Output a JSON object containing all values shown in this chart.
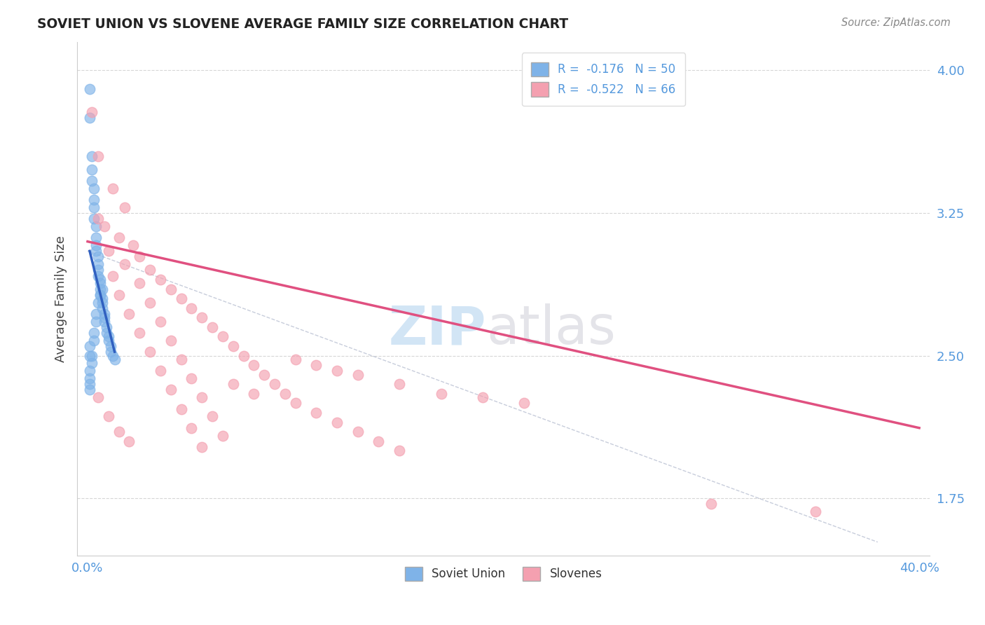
{
  "title": "SOVIET UNION VS SLOVENE AVERAGE FAMILY SIZE CORRELATION CHART",
  "source_text": "Source: ZipAtlas.com",
  "ylabel": "Average Family Size",
  "xlim": [
    -0.005,
    0.405
  ],
  "ylim": [
    1.45,
    4.15
  ],
  "yticks": [
    1.75,
    2.5,
    3.25,
    4.0
  ],
  "xticks": [
    0.0,
    0.4
  ],
  "xtick_labels": [
    "0.0%",
    "40.0%"
  ],
  "ytick_labels": [
    "1.75",
    "2.50",
    "3.25",
    "4.00"
  ],
  "soviet_color": "#7fb3e8",
  "slovene_color": "#f4a0b0",
  "soviet_R": -0.176,
  "soviet_N": 50,
  "slovene_R": -0.522,
  "slovene_N": 66,
  "soviet_line_color": "#3060c0",
  "slovene_line_color": "#e05080",
  "soviet_points": [
    [
      0.001,
      3.9
    ],
    [
      0.001,
      3.75
    ],
    [
      0.002,
      3.55
    ],
    [
      0.002,
      3.48
    ],
    [
      0.002,
      3.42
    ],
    [
      0.003,
      3.38
    ],
    [
      0.003,
      3.32
    ],
    [
      0.003,
      3.28
    ],
    [
      0.003,
      3.22
    ],
    [
      0.004,
      3.18
    ],
    [
      0.004,
      3.12
    ],
    [
      0.004,
      3.08
    ],
    [
      0.004,
      3.05
    ],
    [
      0.005,
      3.02
    ],
    [
      0.005,
      2.98
    ],
    [
      0.005,
      2.95
    ],
    [
      0.005,
      2.92
    ],
    [
      0.006,
      2.9
    ],
    [
      0.006,
      2.88
    ],
    [
      0.006,
      2.85
    ],
    [
      0.006,
      2.82
    ],
    [
      0.007,
      2.8
    ],
    [
      0.007,
      2.78
    ],
    [
      0.007,
      2.75
    ],
    [
      0.008,
      2.72
    ],
    [
      0.008,
      2.7
    ],
    [
      0.008,
      2.68
    ],
    [
      0.009,
      2.65
    ],
    [
      0.009,
      2.62
    ],
    [
      0.01,
      2.6
    ],
    [
      0.01,
      2.58
    ],
    [
      0.011,
      2.55
    ],
    [
      0.011,
      2.52
    ],
    [
      0.012,
      2.5
    ],
    [
      0.013,
      2.48
    ],
    [
      0.002,
      2.5
    ],
    [
      0.002,
      2.46
    ],
    [
      0.001,
      2.42
    ],
    [
      0.001,
      2.38
    ],
    [
      0.001,
      2.35
    ],
    [
      0.001,
      2.32
    ],
    [
      0.001,
      2.5
    ],
    [
      0.001,
      2.55
    ],
    [
      0.003,
      2.58
    ],
    [
      0.003,
      2.62
    ],
    [
      0.004,
      2.68
    ],
    [
      0.004,
      2.72
    ],
    [
      0.005,
      2.78
    ],
    [
      0.006,
      2.82
    ],
    [
      0.007,
      2.85
    ]
  ],
  "slovene_points": [
    [
      0.002,
      3.78
    ],
    [
      0.005,
      3.55
    ],
    [
      0.012,
      3.38
    ],
    [
      0.018,
      3.28
    ],
    [
      0.005,
      3.22
    ],
    [
      0.008,
      3.18
    ],
    [
      0.015,
      3.12
    ],
    [
      0.022,
      3.08
    ],
    [
      0.01,
      3.05
    ],
    [
      0.025,
      3.02
    ],
    [
      0.018,
      2.98
    ],
    [
      0.03,
      2.95
    ],
    [
      0.012,
      2.92
    ],
    [
      0.035,
      2.9
    ],
    [
      0.025,
      2.88
    ],
    [
      0.04,
      2.85
    ],
    [
      0.015,
      2.82
    ],
    [
      0.045,
      2.8
    ],
    [
      0.03,
      2.78
    ],
    [
      0.05,
      2.75
    ],
    [
      0.02,
      2.72
    ],
    [
      0.055,
      2.7
    ],
    [
      0.035,
      2.68
    ],
    [
      0.06,
      2.65
    ],
    [
      0.025,
      2.62
    ],
    [
      0.065,
      2.6
    ],
    [
      0.04,
      2.58
    ],
    [
      0.07,
      2.55
    ],
    [
      0.03,
      2.52
    ],
    [
      0.075,
      2.5
    ],
    [
      0.045,
      2.48
    ],
    [
      0.08,
      2.45
    ],
    [
      0.035,
      2.42
    ],
    [
      0.085,
      2.4
    ],
    [
      0.05,
      2.38
    ],
    [
      0.09,
      2.35
    ],
    [
      0.04,
      2.32
    ],
    [
      0.095,
      2.3
    ],
    [
      0.055,
      2.28
    ],
    [
      0.1,
      2.25
    ],
    [
      0.045,
      2.22
    ],
    [
      0.11,
      2.2
    ],
    [
      0.06,
      2.18
    ],
    [
      0.12,
      2.15
    ],
    [
      0.05,
      2.12
    ],
    [
      0.13,
      2.1
    ],
    [
      0.065,
      2.08
    ],
    [
      0.14,
      2.05
    ],
    [
      0.055,
      2.02
    ],
    [
      0.15,
      2.0
    ],
    [
      0.005,
      2.28
    ],
    [
      0.01,
      2.18
    ],
    [
      0.015,
      2.1
    ],
    [
      0.02,
      2.05
    ],
    [
      0.07,
      2.35
    ],
    [
      0.08,
      2.3
    ],
    [
      0.1,
      2.48
    ],
    [
      0.11,
      2.45
    ],
    [
      0.12,
      2.42
    ],
    [
      0.13,
      2.4
    ],
    [
      0.15,
      2.35
    ],
    [
      0.17,
      2.3
    ],
    [
      0.19,
      2.28
    ],
    [
      0.21,
      2.25
    ],
    [
      0.3,
      1.72
    ],
    [
      0.35,
      1.68
    ]
  ],
  "soviet_line_x": [
    0.001,
    0.013
  ],
  "soviet_line_y": [
    3.05,
    2.52
  ],
  "slovene_line_x": [
    0.0,
    0.4
  ],
  "slovene_line_y": [
    3.1,
    2.12
  ],
  "dash_line_x": [
    0.0,
    0.38
  ],
  "dash_line_y": [
    3.05,
    1.52
  ]
}
